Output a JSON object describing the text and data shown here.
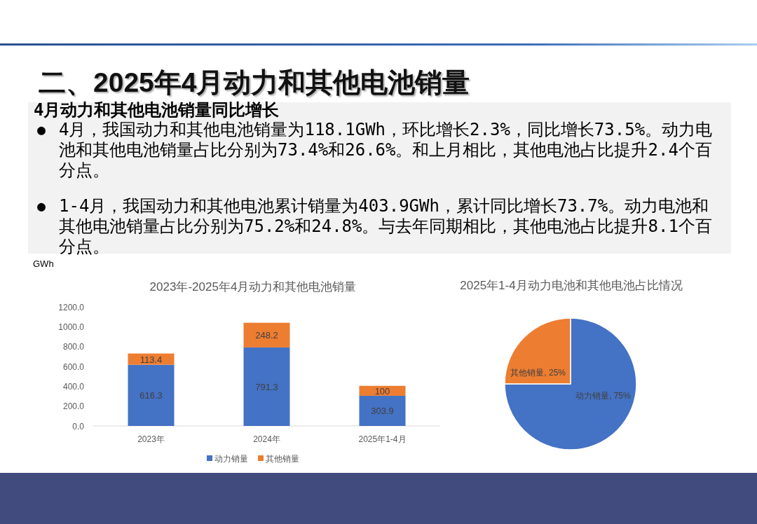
{
  "chart_data": [
    {
      "type": "other",
      "title": "二、2025年4月动力和其他电池销量",
      "subtitle": "4月动力和其他电池销量同比增长",
      "annotations": [
        "● 4月，我国动力和其他电池销量为118.1GWh，环比增长2.3%，同比增长73.5%。动力电池和其他电池销量占比分别为73.4%和26.6%。和上月相比，其他电池占比提升2.4个百分点。",
        "● 1-4月，我国动力和其他电池累计销量为403.9GWh，累计同比增长73.7%。动力电池和其他电池销量占比分别为75.2%和24.8%。与去年同期相比，其他电池占比提升8.1个百分点。"
      ]
    },
    {
      "type": "bar",
      "title": "2023年-2025年4月动力和其他电池销量",
      "ylabel": "GWh",
      "categories": [
        "2023年",
        "2024年",
        "2025年1-4月"
      ],
      "stacked": true,
      "series": [
        {
          "name": "动力销量",
          "color": "#4472c4",
          "values": [
            616.3,
            791.3,
            303.9
          ]
        },
        {
          "name": "其他销量",
          "color": "#ed7d31",
          "values": [
            113.4,
            248.2,
            100
          ]
        }
      ],
      "ylim": [
        0,
        1200
      ],
      "yticks": [
        {
          "value": 0,
          "label": "0.0"
        },
        {
          "value": 200,
          "label": "200.0"
        },
        {
          "value": 400,
          "label": "400.0"
        },
        {
          "value": 600,
          "label": "600.0"
        },
        {
          "value": 800,
          "label": "800.0"
        },
        {
          "value": 1000,
          "label": "1000.0"
        },
        {
          "value": 1200,
          "label": "1200.0"
        }
      ],
      "data_labels": true,
      "legend": "bottom"
    },
    {
      "type": "pie",
      "title": "2025年1-4月动力电池和其他电池占比情况",
      "categories": [
        "动力销量",
        "其他销量"
      ],
      "values": [
        75,
        25
      ],
      "colors": [
        "#4472c4",
        "#ed7d31"
      ],
      "value_labels": [
        "75%",
        "25%"
      ]
    }
  ]
}
